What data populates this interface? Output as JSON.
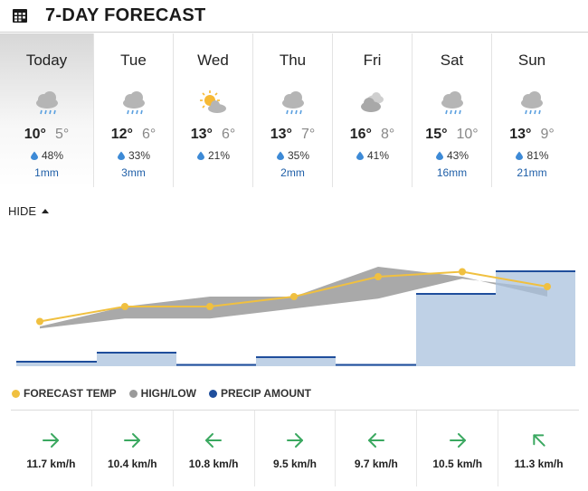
{
  "header": {
    "title": "7-DAY FORECAST",
    "icon": "calendar-icon"
  },
  "days": [
    {
      "name": "Today",
      "icon": "cloud-rain-icon",
      "high": "10°",
      "low": "5°",
      "pop": "48%",
      "amount": "1mm"
    },
    {
      "name": "Tue",
      "icon": "cloud-rain-icon",
      "high": "12°",
      "low": "6°",
      "pop": "33%",
      "amount": "3mm"
    },
    {
      "name": "Wed",
      "icon": "sun-cloud-icon",
      "high": "13°",
      "low": "6°",
      "pop": "21%",
      "amount": ""
    },
    {
      "name": "Thu",
      "icon": "cloud-rain-icon",
      "high": "13°",
      "low": "7°",
      "pop": "35%",
      "amount": "2mm"
    },
    {
      "name": "Fri",
      "icon": "cloudy-icon",
      "high": "16°",
      "low": "8°",
      "pop": "41%",
      "amount": ""
    },
    {
      "name": "Sat",
      "icon": "cloud-rain-icon",
      "high": "15°",
      "low": "10°",
      "pop": "43%",
      "amount": "16mm"
    },
    {
      "name": "Sun",
      "icon": "cloud-rain-icon",
      "high": "13°",
      "low": "9°",
      "pop": "81%",
      "amount": "21mm"
    }
  ],
  "toggle": {
    "label": "HIDE"
  },
  "legend": {
    "temp": "FORECAST TEMP",
    "highlow": "HIGH/LOW",
    "precip": "PRECIP AMOUNT"
  },
  "colors": {
    "temp_line": "#f0c040",
    "highlow_band": "#9a9a9a",
    "precip_fill": "#a9c2de",
    "precip_edge": "#1f4e9c",
    "wind_arrow": "#3aa860",
    "accent_text": "#1f5fa8"
  },
  "chart_data": {
    "type": "line",
    "categories": [
      "Today",
      "Tue",
      "Wed",
      "Thu",
      "Fri",
      "Sat",
      "Sun"
    ],
    "series": [
      {
        "name": "FORECAST TEMP",
        "values": [
          7.5,
          9,
          9,
          10,
          12,
          12.5,
          11
        ]
      },
      {
        "name": "HIGH/LOW",
        "high": [
          10,
          12,
          13,
          13,
          16,
          15,
          13
        ],
        "low": [
          5,
          6,
          6,
          7,
          8,
          10,
          9
        ]
      },
      {
        "name": "PRECIP AMOUNT",
        "values": [
          1,
          3,
          0,
          2,
          0,
          16,
          21
        ]
      }
    ]
  },
  "winds": [
    {
      "speed": "11.7 km/h",
      "direction": "east"
    },
    {
      "speed": "10.4 km/h",
      "direction": "east"
    },
    {
      "speed": "10.8 km/h",
      "direction": "west"
    },
    {
      "speed": "9.5 km/h",
      "direction": "east"
    },
    {
      "speed": "9.7 km/h",
      "direction": "west"
    },
    {
      "speed": "10.5 km/h",
      "direction": "east"
    },
    {
      "speed": "11.3 km/h",
      "direction": "northwest"
    }
  ]
}
